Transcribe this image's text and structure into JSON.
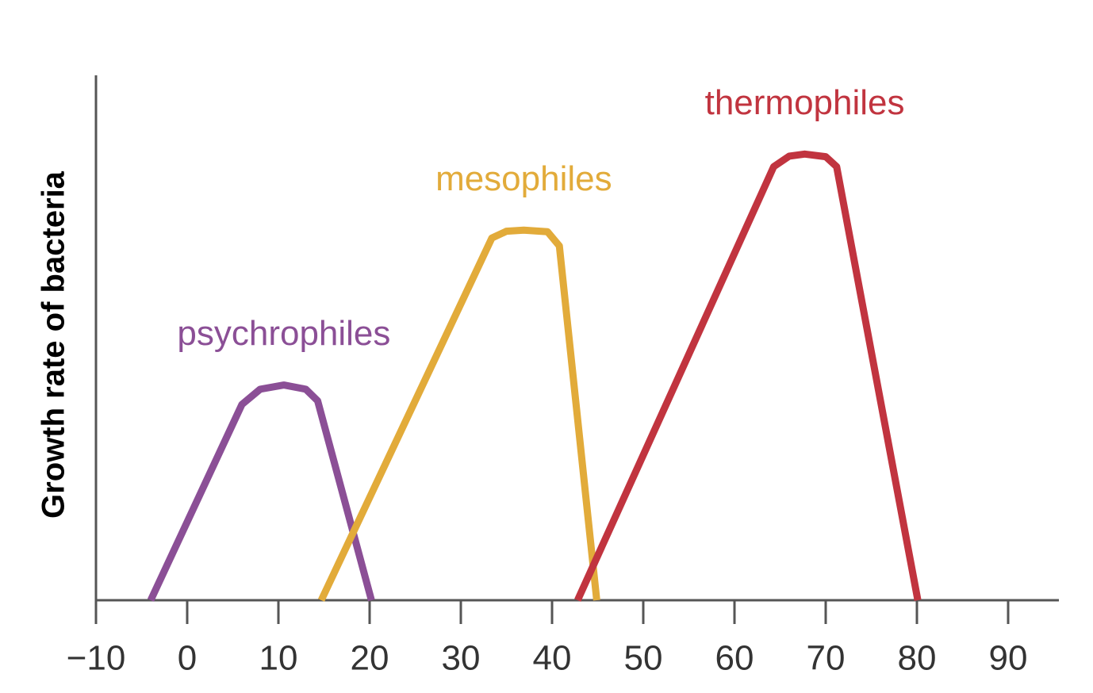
{
  "chart_data": {
    "type": "line",
    "y_label": "Growth rate of bacteria",
    "xlim": [
      -10,
      96
    ],
    "ylim": [
      0,
      100
    ],
    "xticks": [
      {
        "value": -10,
        "label": "−10"
      },
      0,
      10,
      20,
      30,
      40,
      50,
      60,
      70,
      80,
      90
    ],
    "series": [
      {
        "name": "psychrophiles",
        "color": "#8b4f96",
        "x": [
          -4,
          6,
          8,
          10.6,
          13,
          14.3,
          20.2
        ],
        "values": [
          0,
          37.3,
          40.2,
          41,
          40.2,
          38,
          0
        ]
      },
      {
        "name": "mesophiles",
        "color": "#e2ab3a",
        "x": [
          14.7,
          33.4,
          35,
          36.9,
          39.5,
          40.8,
          44.9
        ],
        "values": [
          0,
          69,
          70.3,
          70.5,
          70.2,
          67.5,
          0
        ]
      },
      {
        "name": "thermophiles",
        "color": "#c1343f",
        "x": [
          42.8,
          64.3,
          66,
          67.7,
          70,
          71.2,
          80.1
        ],
        "values": [
          0,
          82.6,
          84.6,
          85,
          84.5,
          82.6,
          0
        ]
      }
    ]
  }
}
